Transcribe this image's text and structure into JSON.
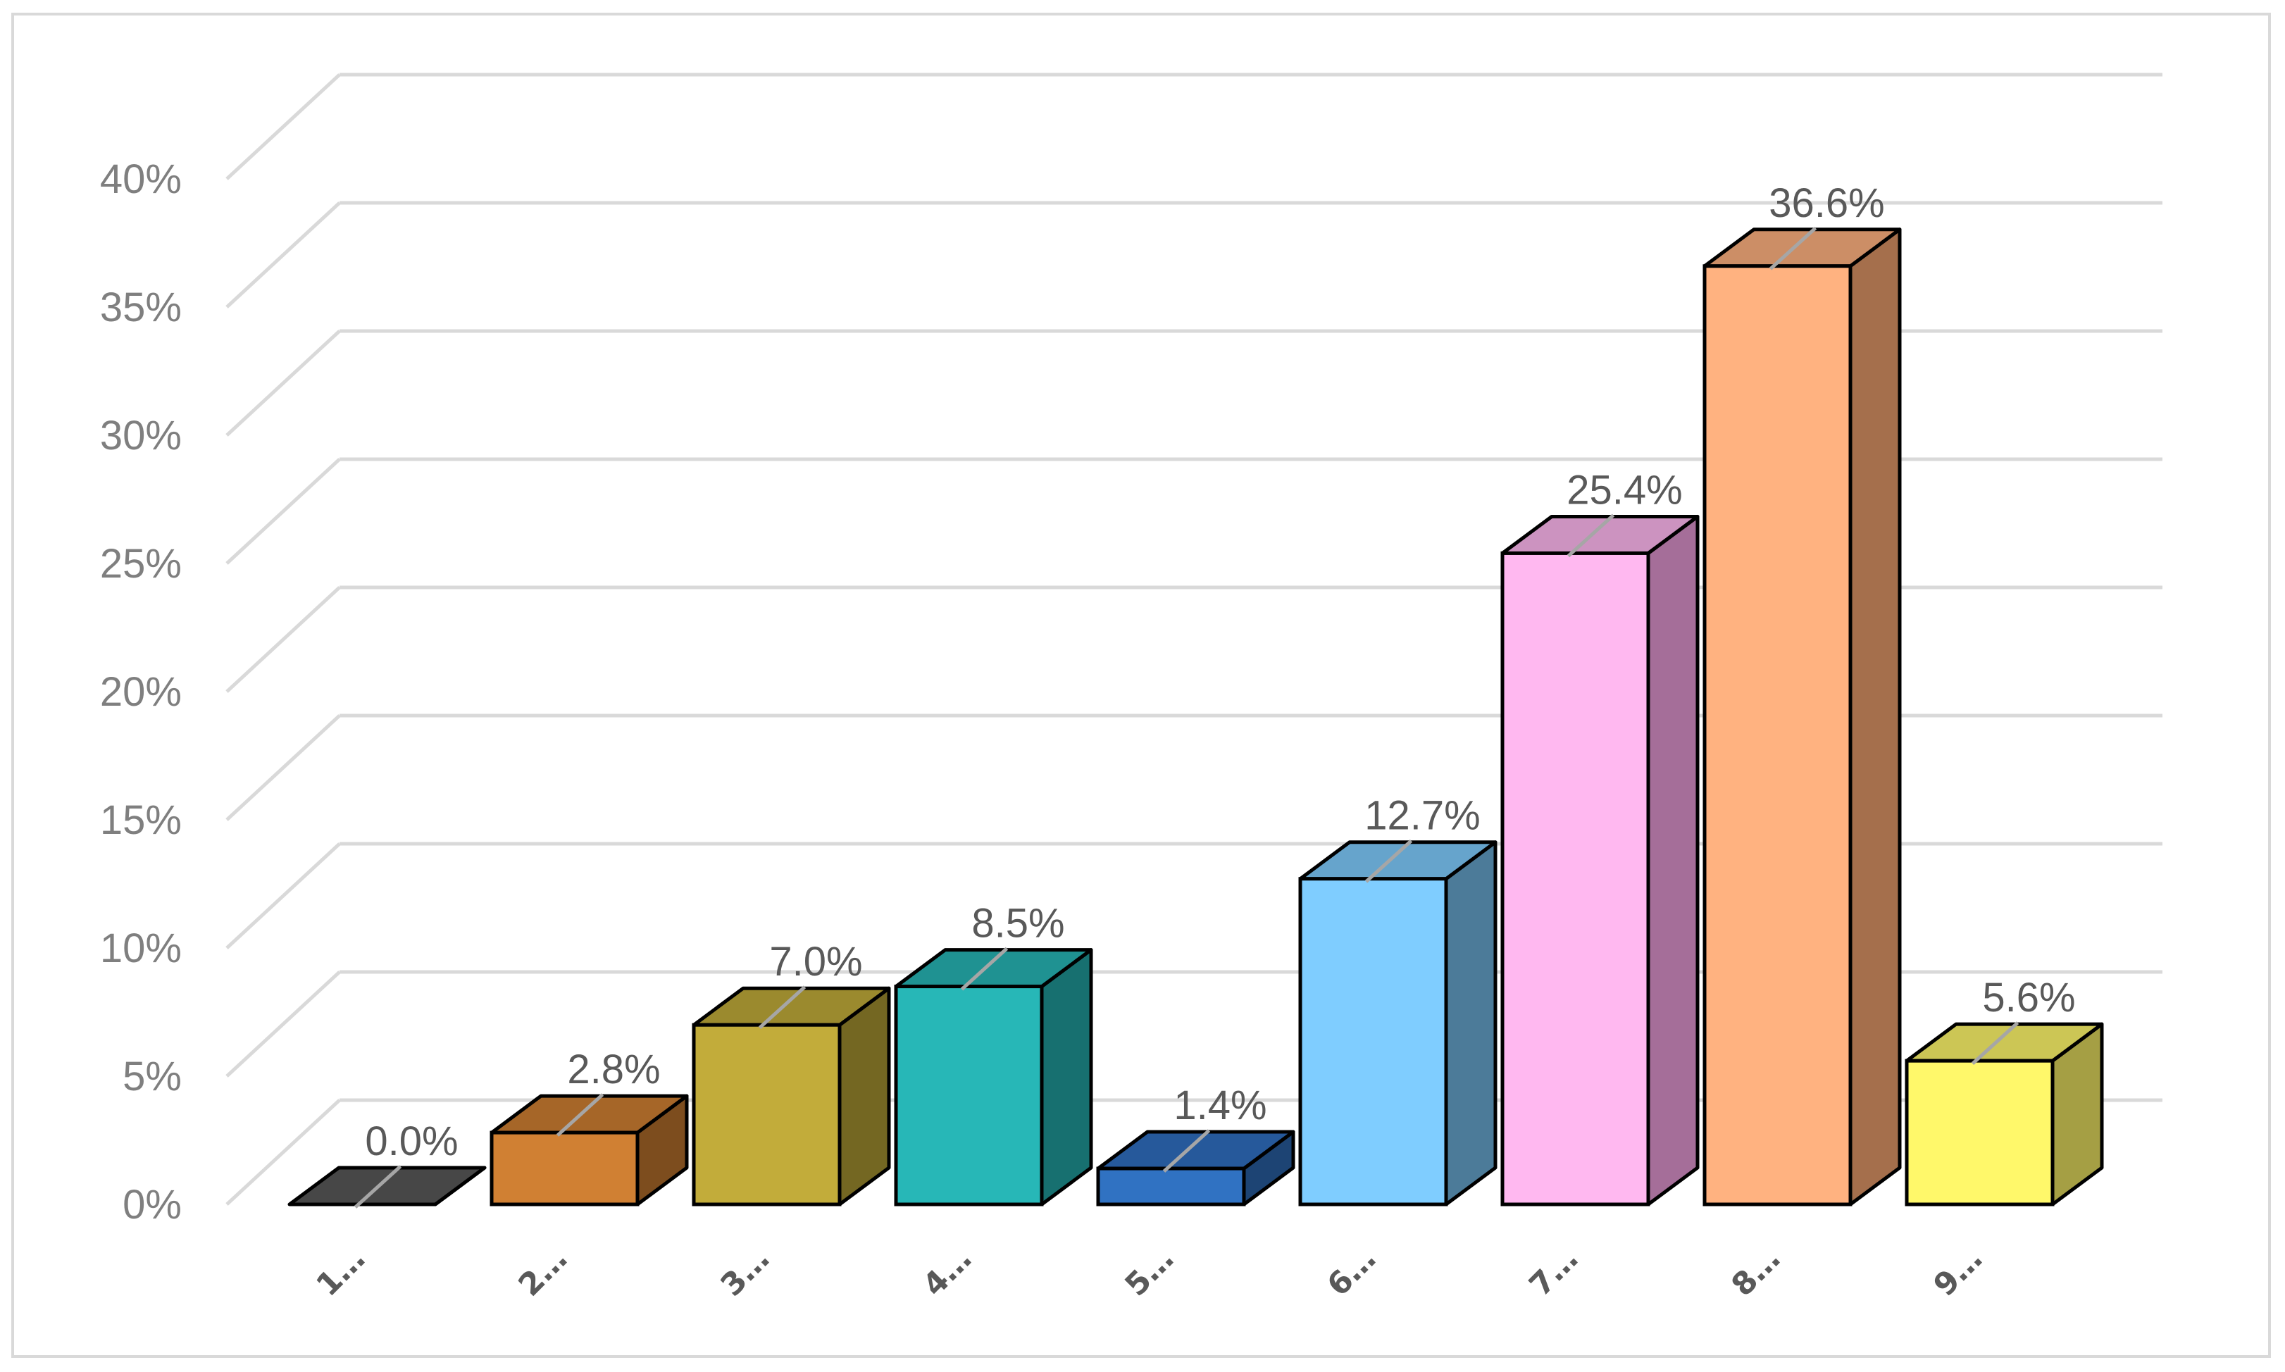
{
  "chart_data": {
    "type": "bar",
    "style": "3d-column",
    "categories": [
      "1…",
      "2…",
      "3…",
      "4…",
      "5…",
      "6…",
      "7…",
      "8…",
      "9…"
    ],
    "values": [
      0.0,
      2.8,
      7.0,
      8.5,
      1.4,
      12.7,
      25.4,
      36.6,
      5.6
    ],
    "data_labels": [
      "0.0%",
      "2.8%",
      "7.0%",
      "8.5%",
      "1.4%",
      "12.7%",
      "25.4%",
      "36.6%",
      "5.6%"
    ],
    "ylim": [
      0,
      40
    ],
    "yticks": [
      "0%",
      "5%",
      "10%",
      "15%",
      "20%",
      "25%",
      "30%",
      "35%",
      "40%"
    ],
    "grid": true,
    "legend": "none",
    "colors": {
      "front": [
        "#595959",
        "#d08033",
        "#c2ac3a",
        "#27b7b7",
        "#3072c2",
        "#7fcdff",
        "#ffb8f0",
        "#ffb280",
        "#fff86a"
      ],
      "top": [
        "#474747",
        "#a66628",
        "#9b8a2e",
        "#1f9292",
        "#26599b",
        "#66a4cc",
        "#cc93c0",
        "#cc8e66",
        "#ccc655"
      ],
      "side": [
        "#353535",
        "#7d4d1e",
        "#746722",
        "#177070",
        "#1d4474",
        "#4c7b99",
        "#a56e99",
        "#a56f4c",
        "#a59f44"
      ]
    }
  }
}
